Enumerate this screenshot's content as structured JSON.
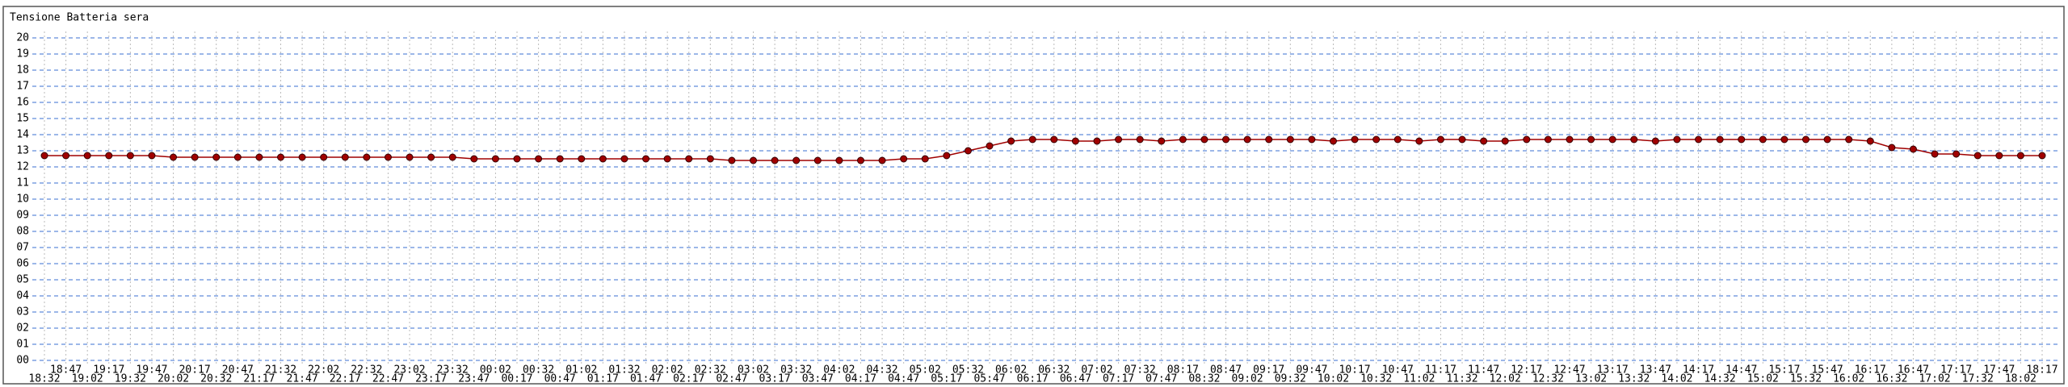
{
  "chart_data": {
    "type": "line",
    "title": "Tensione Batteria sera",
    "categories": [
      "18:32",
      "18:47",
      "19:02",
      "19:17",
      "19:32",
      "19:47",
      "20:02",
      "20:17",
      "20:32",
      "20:47",
      "21:17",
      "21:32",
      "21:47",
      "22:02",
      "22:17",
      "22:32",
      "22:47",
      "23:02",
      "23:17",
      "23:32",
      "23:47",
      "00:02",
      "00:17",
      "00:32",
      "00:47",
      "01:02",
      "01:17",
      "01:32",
      "01:47",
      "02:02",
      "02:17",
      "02:32",
      "02:47",
      "03:02",
      "03:17",
      "03:32",
      "03:47",
      "04:02",
      "04:17",
      "04:32",
      "04:47",
      "05:02",
      "05:17",
      "05:32",
      "05:47",
      "06:02",
      "06:17",
      "06:32",
      "06:47",
      "07:02",
      "07:17",
      "07:32",
      "07:47",
      "08:17",
      "08:32",
      "08:47",
      "09:02",
      "09:17",
      "09:32",
      "09:47",
      "10:02",
      "10:17",
      "10:32",
      "10:47",
      "11:02",
      "11:17",
      "11:32",
      "11:47",
      "12:02",
      "12:17",
      "12:32",
      "12:47",
      "13:02",
      "13:17",
      "13:32",
      "13:47",
      "14:02",
      "14:17",
      "14:32",
      "14:47",
      "15:02",
      "15:17",
      "15:32",
      "15:47",
      "16:02",
      "16:17",
      "16:32",
      "16:47",
      "17:02",
      "17:17",
      "17:32",
      "17:47",
      "18:02",
      "18:17"
    ],
    "values": [
      12.7,
      12.7,
      12.7,
      12.7,
      12.7,
      12.7,
      12.6,
      12.6,
      12.6,
      12.6,
      12.6,
      12.6,
      12.6,
      12.6,
      12.6,
      12.6,
      12.6,
      12.6,
      12.6,
      12.6,
      12.5,
      12.5,
      12.5,
      12.5,
      12.5,
      12.5,
      12.5,
      12.5,
      12.5,
      12.5,
      12.5,
      12.5,
      12.4,
      12.4,
      12.4,
      12.4,
      12.4,
      12.4,
      12.4,
      12.4,
      12.5,
      12.5,
      12.7,
      13.0,
      13.3,
      13.6,
      13.7,
      13.7,
      13.6,
      13.6,
      13.7,
      13.7,
      13.6,
      13.7,
      13.7,
      13.7,
      13.7,
      13.7,
      13.7,
      13.7,
      13.6,
      13.7,
      13.7,
      13.7,
      13.6,
      13.7,
      13.7,
      13.6,
      13.6,
      13.7,
      13.7,
      13.7,
      13.7,
      13.7,
      13.7,
      13.6,
      13.7,
      13.7,
      13.7,
      13.7,
      13.7,
      13.7,
      13.7,
      13.7,
      13.7,
      13.6,
      13.2,
      13.1,
      12.8,
      12.8,
      12.7,
      12.7,
      12.7,
      12.7
    ],
    "color": "#a00000",
    "ylim": [
      0,
      20
    ],
    "yticks": [
      {
        "value": 0,
        "label": "00"
      },
      {
        "value": 1,
        "label": "01"
      },
      {
        "value": 2,
        "label": "02"
      },
      {
        "value": 3,
        "label": "03"
      },
      {
        "value": 4,
        "label": "04"
      },
      {
        "value": 5,
        "label": "05"
      },
      {
        "value": 6,
        "label": "06"
      },
      {
        "value": 7,
        "label": "07"
      },
      {
        "value": 8,
        "label": "08"
      },
      {
        "value": 9,
        "label": "09"
      },
      10,
      11,
      12,
      13,
      14,
      15,
      16,
      17,
      18,
      19,
      20
    ],
    "grid": true
  }
}
